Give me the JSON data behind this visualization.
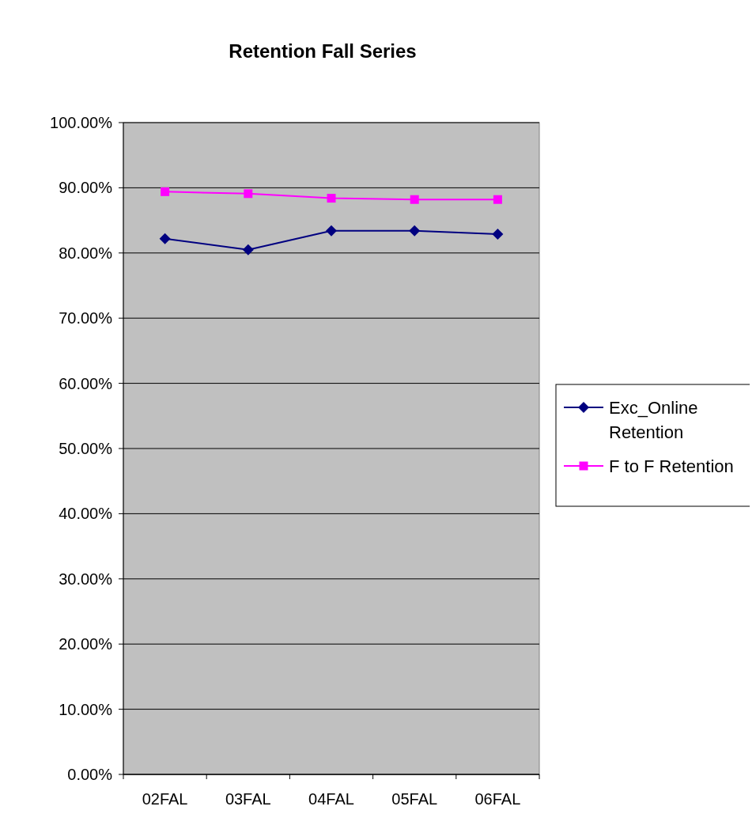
{
  "chart_data": {
    "type": "line",
    "title": "Retention Fall Series",
    "categories": [
      "02FAL",
      "03FAL",
      "04FAL",
      "05FAL",
      "06FAL"
    ],
    "series": [
      {
        "name": "Exc_Online Retention",
        "color": "#000080",
        "marker": "diamond",
        "values": [
          82.2,
          80.5,
          83.4,
          83.4,
          82.9
        ]
      },
      {
        "name": "F to F Retention",
        "color": "#ff00ff",
        "marker": "square",
        "values": [
          89.4,
          89.1,
          88.4,
          88.2,
          88.2
        ]
      }
    ],
    "ylim": [
      0,
      100
    ],
    "yticks": [
      {
        "value": 0,
        "label": "0.00%"
      },
      {
        "value": 10,
        "label": "10.00%"
      },
      {
        "value": 20,
        "label": "20.00%"
      },
      {
        "value": 30,
        "label": "30.00%"
      },
      {
        "value": 40,
        "label": "40.00%"
      },
      {
        "value": 50,
        "label": "50.00%"
      },
      {
        "value": 60,
        "label": "60.00%"
      },
      {
        "value": 70,
        "label": "70.00%"
      },
      {
        "value": 80,
        "label": "80.00%"
      },
      {
        "value": 90,
        "label": "90.00%"
      },
      {
        "value": 100,
        "label": "100.00%"
      }
    ],
    "grid": "y",
    "legend": "right"
  }
}
